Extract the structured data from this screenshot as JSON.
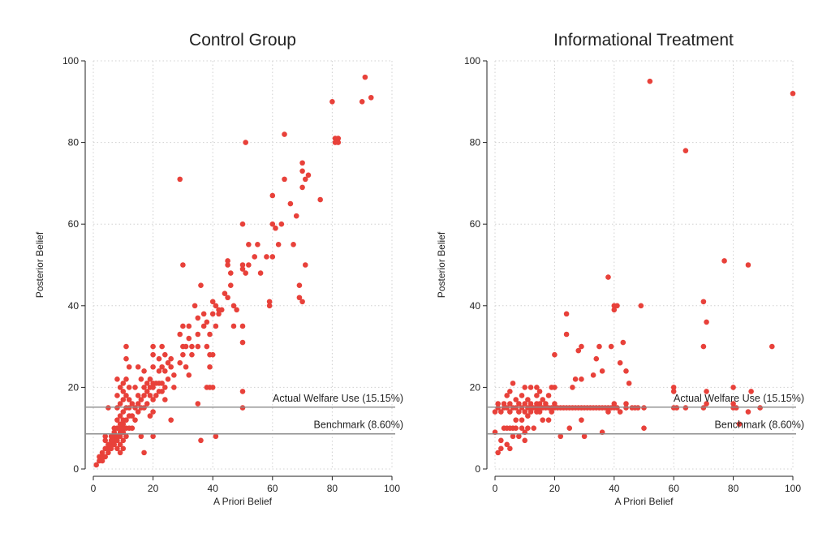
{
  "chart_data": [
    {
      "type": "scatter",
      "title": "Control Group",
      "xlabel": "A Priori Belief",
      "ylabel": "Posterior Belief",
      "xlim": [
        0,
        100
      ],
      "ylim": [
        0,
        100
      ],
      "xticks": [
        "0",
        "20",
        "40",
        "60",
        "80",
        "100"
      ],
      "yticks": [
        "0",
        "20",
        "40",
        "60",
        "80",
        "100"
      ],
      "grid": true,
      "marker_color": "#e8413a",
      "reference_lines": [
        {
          "y": 15.15,
          "label": "Actual Welfare Use (15.15%)"
        },
        {
          "y": 8.6,
          "label": "Benchmark (8.60%)"
        }
      ],
      "points": [
        [
          1,
          1
        ],
        [
          2,
          2
        ],
        [
          2,
          3
        ],
        [
          3,
          2
        ],
        [
          3,
          3
        ],
        [
          3,
          4
        ],
        [
          4,
          3
        ],
        [
          4,
          5
        ],
        [
          4,
          7
        ],
        [
          4,
          8
        ],
        [
          5,
          4
        ],
        [
          5,
          5
        ],
        [
          5,
          6
        ],
        [
          5,
          15
        ],
        [
          6,
          5
        ],
        [
          6,
          6
        ],
        [
          6,
          7
        ],
        [
          6,
          8
        ],
        [
          7,
          6
        ],
        [
          7,
          7
        ],
        [
          7,
          8
        ],
        [
          7,
          9
        ],
        [
          7,
          10
        ],
        [
          8,
          5
        ],
        [
          8,
          7
        ],
        [
          8,
          8
        ],
        [
          8,
          10
        ],
        [
          8,
          12
        ],
        [
          8,
          15
        ],
        [
          8,
          18
        ],
        [
          8,
          22
        ],
        [
          9,
          4
        ],
        [
          9,
          6
        ],
        [
          9,
          8
        ],
        [
          9,
          9
        ],
        [
          9,
          10
        ],
        [
          9,
          11
        ],
        [
          9,
          13
        ],
        [
          9,
          16
        ],
        [
          9,
          20
        ],
        [
          10,
          5
        ],
        [
          10,
          7
        ],
        [
          10,
          9
        ],
        [
          10,
          10
        ],
        [
          10,
          11
        ],
        [
          10,
          12
        ],
        [
          10,
          14
        ],
        [
          10,
          17
        ],
        [
          10,
          19
        ],
        [
          10,
          21
        ],
        [
          11,
          8
        ],
        [
          11,
          10
        ],
        [
          11,
          12
        ],
        [
          11,
          15
        ],
        [
          11,
          18
        ],
        [
          11,
          22
        ],
        [
          11,
          27
        ],
        [
          11,
          30
        ],
        [
          12,
          10
        ],
        [
          12,
          13
        ],
        [
          12,
          15
        ],
        [
          12,
          17
        ],
        [
          12,
          20
        ],
        [
          12,
          25
        ],
        [
          13,
          10
        ],
        [
          13,
          13
        ],
        [
          13,
          16
        ],
        [
          14,
          12
        ],
        [
          14,
          15
        ],
        [
          14,
          20
        ],
        [
          15,
          14
        ],
        [
          15,
          16
        ],
        [
          15,
          18
        ],
        [
          15,
          25
        ],
        [
          16,
          8
        ],
        [
          16,
          15
        ],
        [
          16,
          17
        ],
        [
          16,
          22
        ],
        [
          17,
          4
        ],
        [
          17,
          15
        ],
        [
          17,
          18
        ],
        [
          17,
          20
        ],
        [
          17,
          24
        ],
        [
          18,
          16
        ],
        [
          18,
          19
        ],
        [
          18,
          21
        ],
        [
          19,
          13
        ],
        [
          19,
          18
        ],
        [
          19,
          20
        ],
        [
          19,
          22
        ],
        [
          20,
          8
        ],
        [
          20,
          14
        ],
        [
          20,
          17
        ],
        [
          20,
          20
        ],
        [
          20,
          21
        ],
        [
          20,
          25
        ],
        [
          20,
          28
        ],
        [
          20,
          30
        ],
        [
          21,
          18
        ],
        [
          21,
          21
        ],
        [
          22,
          19
        ],
        [
          22,
          21
        ],
        [
          22,
          24
        ],
        [
          22,
          27
        ],
        [
          23,
          19
        ],
        [
          23,
          21
        ],
        [
          23,
          25
        ],
        [
          23,
          30
        ],
        [
          24,
          17
        ],
        [
          24,
          20
        ],
        [
          24,
          24
        ],
        [
          24,
          28
        ],
        [
          25,
          22
        ],
        [
          25,
          26
        ],
        [
          26,
          12
        ],
        [
          26,
          25
        ],
        [
          26,
          27
        ],
        [
          27,
          20
        ],
        [
          27,
          23
        ],
        [
          29,
          71
        ],
        [
          29,
          33
        ],
        [
          29,
          26
        ],
        [
          30,
          50
        ],
        [
          30,
          35
        ],
        [
          30,
          30
        ],
        [
          30,
          28
        ],
        [
          31,
          25
        ],
        [
          31,
          30
        ],
        [
          32,
          32
        ],
        [
          32,
          35
        ],
        [
          32,
          23
        ],
        [
          33,
          28
        ],
        [
          33,
          30
        ],
        [
          34,
          40
        ],
        [
          35,
          16
        ],
        [
          35,
          30
        ],
        [
          35,
          33
        ],
        [
          35,
          37
        ],
        [
          36,
          7
        ],
        [
          36,
          45
        ],
        [
          37,
          35
        ],
        [
          37,
          38
        ],
        [
          38,
          20
        ],
        [
          38,
          30
        ],
        [
          38,
          36
        ],
        [
          39,
          20
        ],
        [
          39,
          25
        ],
        [
          39,
          28
        ],
        [
          39,
          33
        ],
        [
          40,
          20
        ],
        [
          40,
          28
        ],
        [
          40,
          38
        ],
        [
          40,
          41
        ],
        [
          41,
          8
        ],
        [
          41,
          35
        ],
        [
          41,
          40
        ],
        [
          42,
          38
        ],
        [
          42,
          39
        ],
        [
          43,
          39
        ],
        [
          44,
          43
        ],
        [
          45,
          50
        ],
        [
          45,
          51
        ],
        [
          45,
          42
        ],
        [
          46,
          48
        ],
        [
          46,
          45
        ],
        [
          47,
          35
        ],
        [
          47,
          40
        ],
        [
          48,
          39
        ],
        [
          50,
          60
        ],
        [
          50,
          50
        ],
        [
          50,
          49
        ],
        [
          50,
          35
        ],
        [
          50,
          31
        ],
        [
          50,
          19
        ],
        [
          50,
          15
        ],
        [
          51,
          80
        ],
        [
          51,
          48
        ],
        [
          52,
          55
        ],
        [
          52,
          50
        ],
        [
          54,
          52
        ],
        [
          55,
          55
        ],
        [
          56,
          48
        ],
        [
          58,
          52
        ],
        [
          59,
          41
        ],
        [
          59,
          40
        ],
        [
          60,
          60
        ],
        [
          60,
          52
        ],
        [
          60,
          67
        ],
        [
          61,
          59
        ],
        [
          62,
          55
        ],
        [
          63,
          60
        ],
        [
          64,
          71
        ],
        [
          64,
          82
        ],
        [
          66,
          65
        ],
        [
          67,
          55
        ],
        [
          68,
          62
        ],
        [
          69,
          45
        ],
        [
          69,
          42
        ],
        [
          70,
          41
        ],
        [
          70,
          69
        ],
        [
          70,
          73
        ],
        [
          70,
          75
        ],
        [
          71,
          71
        ],
        [
          71,
          50
        ],
        [
          72,
          72
        ],
        [
          76,
          66
        ],
        [
          80,
          90
        ],
        [
          81,
          80
        ],
        [
          81,
          81
        ],
        [
          82,
          80
        ],
        [
          82,
          81
        ],
        [
          90,
          90
        ],
        [
          91,
          96
        ],
        [
          93,
          91
        ]
      ]
    },
    {
      "type": "scatter",
      "title": "Informational Treatment",
      "xlabel": "A Priori Belief",
      "ylabel": "Posterior Belief",
      "xlim": [
        0,
        100
      ],
      "ylim": [
        0,
        100
      ],
      "xticks": [
        "0",
        "20",
        "40",
        "60",
        "80",
        "100"
      ],
      "yticks": [
        "0",
        "20",
        "40",
        "60",
        "80",
        "100"
      ],
      "grid": true,
      "marker_color": "#e8413a",
      "reference_lines": [
        {
          "y": 15.15,
          "label": "Actual Welfare Use (15.15%)"
        },
        {
          "y": 8.6,
          "label": "Benchmark (8.60%)"
        }
      ],
      "points": [
        [
          0,
          9
        ],
        [
          0,
          14
        ],
        [
          1,
          4
        ],
        [
          1,
          15
        ],
        [
          1,
          16
        ],
        [
          2,
          5
        ],
        [
          2,
          7
        ],
        [
          2,
          14
        ],
        [
          3,
          10
        ],
        [
          3,
          15
        ],
        [
          3,
          16
        ],
        [
          4,
          6
        ],
        [
          4,
          10
        ],
        [
          4,
          15
        ],
        [
          4,
          18
        ],
        [
          5,
          5
        ],
        [
          5,
          10
        ],
        [
          5,
          14
        ],
        [
          5,
          16
        ],
        [
          5,
          19
        ],
        [
          6,
          8
        ],
        [
          6,
          10
        ],
        [
          6,
          15
        ],
        [
          6,
          21
        ],
        [
          7,
          10
        ],
        [
          7,
          12
        ],
        [
          7,
          15
        ],
        [
          7,
          17
        ],
        [
          8,
          8
        ],
        [
          8,
          14
        ],
        [
          8,
          16
        ],
        [
          9,
          10
        ],
        [
          9,
          12
        ],
        [
          9,
          15
        ],
        [
          9,
          18
        ],
        [
          10,
          7
        ],
        [
          10,
          9
        ],
        [
          10,
          14
        ],
        [
          10,
          16
        ],
        [
          10,
          20
        ],
        [
          11,
          10
        ],
        [
          11,
          13
        ],
        [
          11,
          15
        ],
        [
          11,
          17
        ],
        [
          12,
          14
        ],
        [
          12,
          15
        ],
        [
          12,
          16
        ],
        [
          12,
          20
        ],
        [
          13,
          10
        ],
        [
          13,
          15
        ],
        [
          14,
          14
        ],
        [
          14,
          15
        ],
        [
          14,
          16
        ],
        [
          14,
          18
        ],
        [
          14,
          20
        ],
        [
          15,
          14
        ],
        [
          15,
          15
        ],
        [
          15,
          16
        ],
        [
          15,
          19
        ],
        [
          16,
          12
        ],
        [
          16,
          15
        ],
        [
          16,
          17
        ],
        [
          17,
          15
        ],
        [
          17,
          16
        ],
        [
          18,
          12
        ],
        [
          18,
          15
        ],
        [
          18,
          18
        ],
        [
          19,
          14
        ],
        [
          19,
          15
        ],
        [
          19,
          20
        ],
        [
          20,
          15
        ],
        [
          20,
          16
        ],
        [
          20,
          20
        ],
        [
          20,
          28
        ],
        [
          21,
          15
        ],
        [
          22,
          8
        ],
        [
          22,
          15
        ],
        [
          23,
          15
        ],
        [
          24,
          15
        ],
        [
          24,
          33
        ],
        [
          24,
          38
        ],
        [
          25,
          10
        ],
        [
          25,
          15
        ],
        [
          26,
          15
        ],
        [
          26,
          20
        ],
        [
          27,
          15
        ],
        [
          27,
          22
        ],
        [
          28,
          15
        ],
        [
          28,
          29
        ],
        [
          29,
          12
        ],
        [
          29,
          15
        ],
        [
          29,
          22
        ],
        [
          29,
          30
        ],
        [
          30,
          8
        ],
        [
          30,
          15
        ],
        [
          31,
          15
        ],
        [
          32,
          15
        ],
        [
          33,
          15
        ],
        [
          33,
          23
        ],
        [
          34,
          15
        ],
        [
          34,
          27
        ],
        [
          35,
          15
        ],
        [
          35,
          30
        ],
        [
          36,
          9
        ],
        [
          36,
          15
        ],
        [
          36,
          24
        ],
        [
          37,
          15
        ],
        [
          38,
          14
        ],
        [
          38,
          15
        ],
        [
          38,
          47
        ],
        [
          39,
          15
        ],
        [
          39,
          30
        ],
        [
          40,
          15
        ],
        [
          40,
          16
        ],
        [
          40,
          39
        ],
        [
          40,
          40
        ],
        [
          41,
          15
        ],
        [
          41,
          40
        ],
        [
          42,
          14
        ],
        [
          42,
          26
        ],
        [
          43,
          31
        ],
        [
          44,
          15
        ],
        [
          44,
          16
        ],
        [
          44,
          24
        ],
        [
          45,
          21
        ],
        [
          46,
          15
        ],
        [
          47,
          15
        ],
        [
          48,
          15
        ],
        [
          49,
          40
        ],
        [
          50,
          10
        ],
        [
          50,
          15
        ],
        [
          52,
          95
        ],
        [
          60,
          15
        ],
        [
          60,
          19
        ],
        [
          60,
          20
        ],
        [
          61,
          15
        ],
        [
          64,
          15
        ],
        [
          64,
          78
        ],
        [
          70,
          15
        ],
        [
          70,
          30
        ],
        [
          70,
          41
        ],
        [
          71,
          16
        ],
        [
          71,
          36
        ],
        [
          71,
          19
        ],
        [
          77,
          51
        ],
        [
          80,
          15
        ],
        [
          80,
          16
        ],
        [
          80,
          20
        ],
        [
          81,
          15
        ],
        [
          82,
          11
        ],
        [
          85,
          50
        ],
        [
          85,
          14
        ],
        [
          86,
          19
        ],
        [
          89,
          15
        ],
        [
          93,
          30
        ],
        [
          100,
          92
        ]
      ]
    }
  ]
}
